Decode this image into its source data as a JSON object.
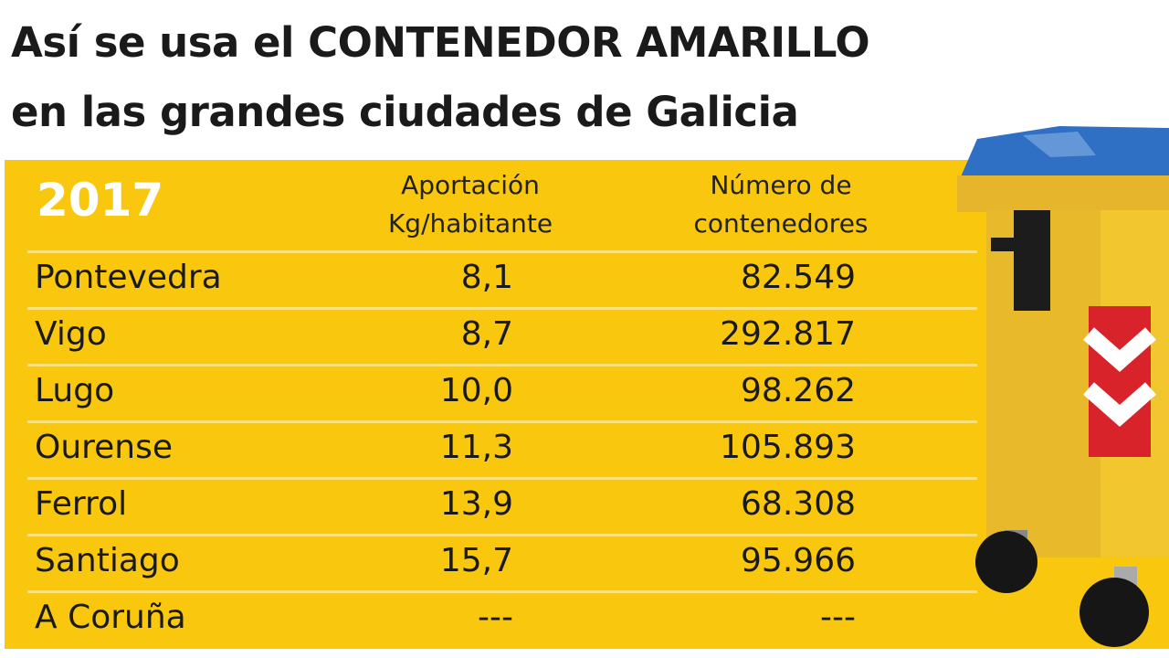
{
  "title_line1": "Así se usa el CONTENEDOR AMARILLO",
  "title_line2": "en las grandes ciudades de Galicia",
  "colors": {
    "panel": "#f9c80e",
    "year": "#ffffff",
    "lid": "#2f6fc4"
  },
  "chart_data": {
    "type": "table",
    "year": "2017",
    "columns": [
      "Aportación Kg/habitante",
      "Número de contenedores"
    ],
    "header_lines": [
      [
        "Aportación",
        "Kg/habitante"
      ],
      [
        "Número de",
        "contenedores"
      ]
    ],
    "rows": [
      {
        "city": "Pontevedra",
        "kg": "8,1",
        "containers": "82.549"
      },
      {
        "city": "Vigo",
        "kg": "8,7",
        "containers": "292.817"
      },
      {
        "city": "Lugo",
        "kg": "10,0",
        "containers": "98.262"
      },
      {
        "city": "Ourense",
        "kg": "11,3",
        "containers": "105.893"
      },
      {
        "city": "Ferrol",
        "kg": "13,9",
        "containers": "68.308"
      },
      {
        "city": "Santiago",
        "kg": "15,7",
        "containers": "95.966"
      },
      {
        "city": "A Coruña",
        "kg": "---",
        "containers": "---"
      }
    ]
  },
  "image": {
    "icon": "yellow-recycling-container"
  }
}
